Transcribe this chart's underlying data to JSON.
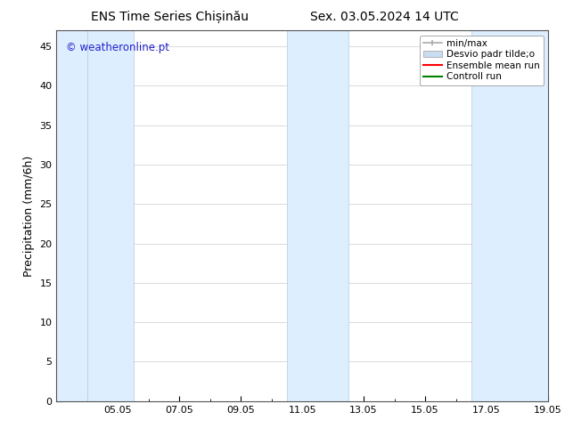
{
  "title_left": "ENS Time Series Chișinău",
  "title_right": "Sex. 03.05.2024 14 UTC",
  "ylabel": "Precipitation (mm/6h)",
  "ylim": [
    0,
    47
  ],
  "yticks": [
    0,
    5,
    10,
    15,
    20,
    25,
    30,
    35,
    40,
    45
  ],
  "xtick_labels": [
    "05.05",
    "07.05",
    "09.05",
    "11.05",
    "13.05",
    "15.05",
    "17.05",
    "19.05"
  ],
  "xtick_positions_days": [
    2,
    4,
    6,
    8,
    10,
    12,
    14,
    16
  ],
  "total_days": 16,
  "shaded_bands": [
    {
      "start_day": 0.0,
      "end_day": 1.0
    },
    {
      "start_day": 1.0,
      "end_day": 2.5
    },
    {
      "start_day": 7.5,
      "end_day": 9.5
    },
    {
      "start_day": 13.5,
      "end_day": 16.0
    }
  ],
  "background_color": "#ffffff",
  "band_color": "#ddeeff",
  "band_edge_color": "#b0cce0",
  "grid_color": "#cccccc",
  "legend_items": [
    {
      "label": "min/max",
      "color": "#aaaaaa",
      "type": "errorbar"
    },
    {
      "label": "Desvio padr tilde;o",
      "color": "#c8ddf0",
      "type": "rect"
    },
    {
      "label": "Ensemble mean run",
      "color": "#ff0000",
      "type": "line"
    },
    {
      "label": "Controll run",
      "color": "#008000",
      "type": "line"
    }
  ],
  "watermark_text": "© weatheronline.pt",
  "watermark_color": "#2222cc",
  "title_fontsize": 10,
  "axis_fontsize": 9,
  "tick_fontsize": 8,
  "legend_fontsize": 7.5
}
